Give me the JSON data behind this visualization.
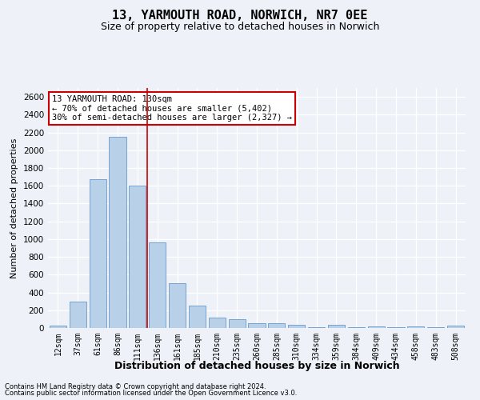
{
  "title": "13, YARMOUTH ROAD, NORWICH, NR7 0EE",
  "subtitle": "Size of property relative to detached houses in Norwich",
  "xlabel": "Distribution of detached houses by size in Norwich",
  "ylabel": "Number of detached properties",
  "bar_color": "#b8d0e8",
  "bar_edge_color": "#6699cc",
  "categories": [
    "12sqm",
    "37sqm",
    "61sqm",
    "86sqm",
    "111sqm",
    "136sqm",
    "161sqm",
    "185sqm",
    "210sqm",
    "235sqm",
    "260sqm",
    "285sqm",
    "310sqm",
    "334sqm",
    "359sqm",
    "384sqm",
    "409sqm",
    "434sqm",
    "458sqm",
    "483sqm",
    "508sqm"
  ],
  "values": [
    25,
    300,
    1670,
    2150,
    1600,
    960,
    505,
    250,
    120,
    100,
    50,
    50,
    35,
    5,
    35,
    5,
    20,
    5,
    20,
    5,
    25
  ],
  "ylim": [
    0,
    2700
  ],
  "yticks": [
    0,
    200,
    400,
    600,
    800,
    1000,
    1200,
    1400,
    1600,
    1800,
    2000,
    2200,
    2400,
    2600
  ],
  "annotation_box_text": "13 YARMOUTH ROAD: 130sqm\n← 70% of detached houses are smaller (5,402)\n30% of semi-detached houses are larger (2,327) →",
  "vline_x": 4.5,
  "footer_line1": "Contains HM Land Registry data © Crown copyright and database right 2024.",
  "footer_line2": "Contains public sector information licensed under the Open Government Licence v3.0.",
  "background_color": "#eef2f8",
  "grid_color": "#ffffff",
  "annotation_box_color": "#ffffff",
  "annotation_box_edge": "#cc0000",
  "vline_color": "#cc0000",
  "title_fontsize": 11,
  "subtitle_fontsize": 9
}
